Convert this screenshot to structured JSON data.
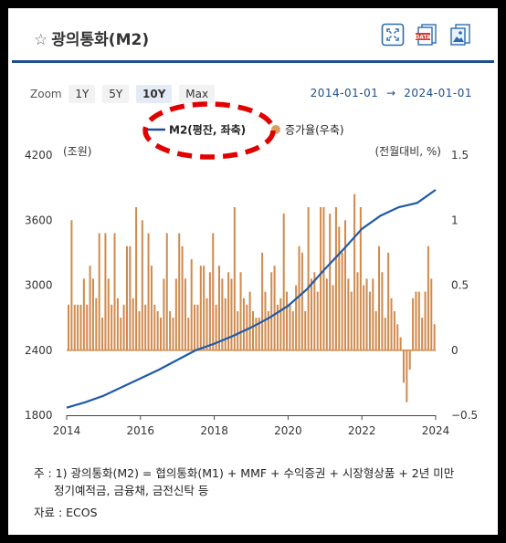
{
  "header": {
    "title": "광의통화(M2)",
    "icons": [
      "fullscreen-icon",
      "data-download-icon",
      "image-download-icon"
    ],
    "data_badge": "DATA"
  },
  "zoom": {
    "label": "Zoom",
    "options": [
      "1Y",
      "5Y",
      "10Y",
      "Max"
    ],
    "selected": "10Y"
  },
  "range": {
    "start": "2014-01-01",
    "arrow": "→",
    "end": "2024-01-01"
  },
  "chart_data": {
    "type": "bar+line",
    "legend": [
      {
        "name": "M2(평잔, 좌축)",
        "color": "#1f4e9c",
        "marker": "line"
      },
      {
        "name": "증가율(우축)",
        "color": "#c8864c",
        "marker": "dot"
      }
    ],
    "left_axis": {
      "unit": "(조원)",
      "ticks": [
        1800,
        2400,
        3000,
        3600,
        4200
      ],
      "range": [
        1800,
        4200
      ]
    },
    "right_axis": {
      "unit": "(전월대비, %)",
      "ticks": [
        -0.5,
        0,
        0.5,
        1,
        1.5
      ],
      "range": [
        -0.5,
        1.5
      ]
    },
    "x_axis": {
      "ticks": [
        "2014",
        "2016",
        "2018",
        "2020",
        "2022",
        "2024"
      ],
      "range": [
        2014,
        2024
      ]
    },
    "m2_line": {
      "name": "M2(평잔, 좌축)",
      "points": [
        [
          2014.0,
          1870
        ],
        [
          2014.5,
          1920
        ],
        [
          2015.0,
          1980
        ],
        [
          2015.5,
          2060
        ],
        [
          2016.0,
          2140
        ],
        [
          2016.5,
          2220
        ],
        [
          2017.0,
          2310
        ],
        [
          2017.5,
          2400
        ],
        [
          2018.0,
          2460
        ],
        [
          2018.5,
          2530
        ],
        [
          2019.0,
          2610
        ],
        [
          2019.5,
          2700
        ],
        [
          2020.0,
          2810
        ],
        [
          2020.5,
          2960
        ],
        [
          2021.0,
          3150
        ],
        [
          2021.5,
          3330
        ],
        [
          2022.0,
          3520
        ],
        [
          2022.5,
          3640
        ],
        [
          2023.0,
          3720
        ],
        [
          2023.5,
          3760
        ],
        [
          2024.0,
          3880
        ]
      ]
    },
    "growth_bars": {
      "name": "증가율(우축)",
      "x_start": 2014.0,
      "x_step": 0.08333,
      "values": [
        0.35,
        1.0,
        0.35,
        0.35,
        0.35,
        0.55,
        0.35,
        0.65,
        0.55,
        0.4,
        0.9,
        0.25,
        0.9,
        0.55,
        0.35,
        0.9,
        0.4,
        0.25,
        0.35,
        0.8,
        0.8,
        0.4,
        1.1,
        0.3,
        1.0,
        0.35,
        0.9,
        0.65,
        0.35,
        0.3,
        0.25,
        0.55,
        0.9,
        0.3,
        0.25,
        0.55,
        0.9,
        0.8,
        0.55,
        0.25,
        0.7,
        0.35,
        0.35,
        0.65,
        0.65,
        0.4,
        0.6,
        0.9,
        0.35,
        0.65,
        0.55,
        0.4,
        0.6,
        0.55,
        1.1,
        0.3,
        0.6,
        0.4,
        0.35,
        0.45,
        0.3,
        0.25,
        0.25,
        0.75,
        0.45,
        0.3,
        0.6,
        0.65,
        0.35,
        0.4,
        1.05,
        0.45,
        0.35,
        0.3,
        0.5,
        0.8,
        0.75,
        0.3,
        1.1,
        0.55,
        0.6,
        0.45,
        1.1,
        1.1,
        0.55,
        1.05,
        0.5,
        1.1,
        0.95,
        0.75,
        1.0,
        0.55,
        0.45,
        1.2,
        0.6,
        1.1,
        0.5,
        0.55,
        0.45,
        0.55,
        0.3,
        0.8,
        0.6,
        0.25,
        0.75,
        0.4,
        0.3,
        0.2,
        0.1,
        -0.25,
        -0.4,
        -0.15,
        0.4,
        0.45,
        0.45,
        0.25,
        0.45,
        0.8,
        0.55,
        0.2
      ]
    }
  },
  "annotation": {
    "shape": "dashed-ellipse",
    "color": "#e00000",
    "target": "legend-m2"
  },
  "notes": {
    "line1": "주 : 1)  광의통화(M2) = 협의통화(M1) + MMF + 수익증권 + 시장형상품 + 2년 미만",
    "line2": "정기예적금, 금융채, 금전신탁 등"
  },
  "source": "자료 :  ECOS"
}
